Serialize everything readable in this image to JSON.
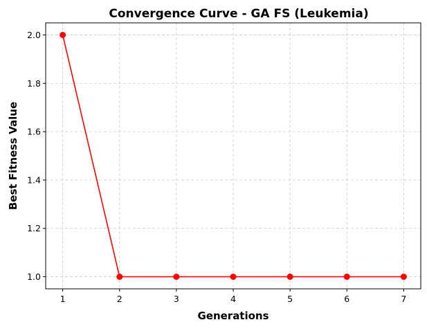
{
  "chart_data": {
    "type": "line",
    "title": "Convergence Curve - GA FS (Leukemia)",
    "xlabel": "Generations",
    "ylabel": "Best Fitness Value",
    "x": [
      1,
      2,
      3,
      4,
      5,
      6,
      7
    ],
    "series": [
      {
        "values": [
          2.0,
          1.0,
          1.0,
          1.0,
          1.0,
          1.0,
          1.0
        ],
        "color": "#ff0000",
        "marker": "circle"
      }
    ],
    "xticks": [
      1,
      2,
      3,
      4,
      5,
      6,
      7
    ],
    "yticks": [
      1.0,
      1.2,
      1.4,
      1.6,
      1.8,
      2.0
    ],
    "ytick_labels": [
      "1.0",
      "1.2",
      "1.4",
      "1.6",
      "1.8",
      "2.0"
    ],
    "xlim": [
      0.7,
      7.3
    ],
    "ylim": [
      0.95,
      2.05
    ],
    "grid": true,
    "grid_style": "dashed",
    "grid_color": "#cccccc"
  }
}
